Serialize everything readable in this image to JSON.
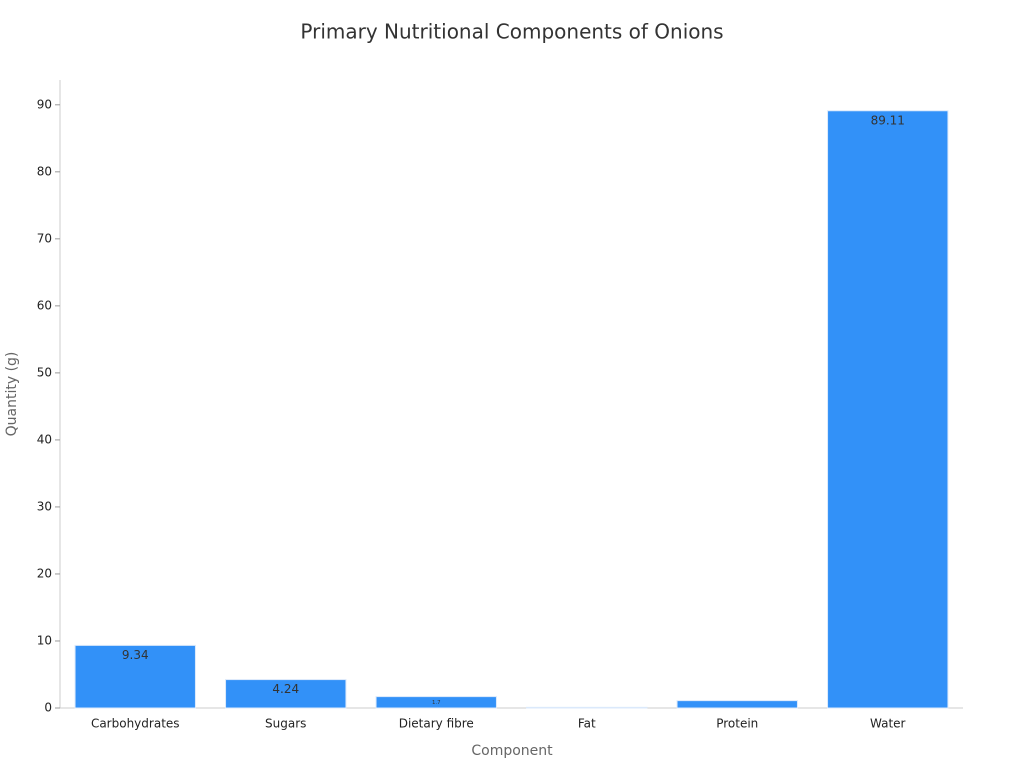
{
  "chart_data": {
    "type": "bar",
    "title": "Primary Nutritional Components of Onions",
    "x_label": "Component",
    "y_label": "Quantity (g)",
    "categories": [
      "Carbohydrates",
      "Sugars",
      "Dietary fibre",
      "Fat",
      "Protein",
      "Water"
    ],
    "values": [
      9.34,
      4.24,
      1.7,
      0.1,
      1.1,
      89.11
    ],
    "color": "#3291f8",
    "ylim": [
      0,
      93.7
    ],
    "yticks": [
      0,
      10,
      20,
      30,
      40,
      50,
      60,
      70,
      80,
      90
    ],
    "grid": false
  }
}
